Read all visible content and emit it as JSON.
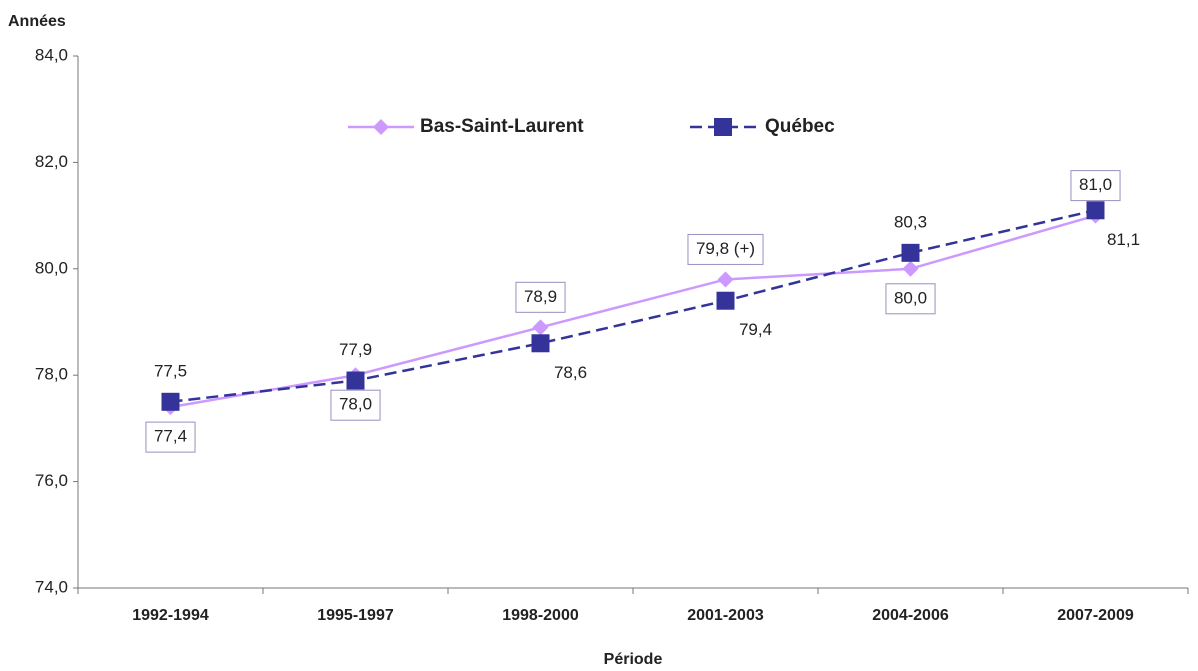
{
  "chart_data": {
    "type": "line",
    "y_label": "Années",
    "x_label": "Période",
    "categories": [
      "1992-1994",
      "1995-1997",
      "1998-2000",
      "2001-2003",
      "2004-2006",
      "2007-2009"
    ],
    "series": [
      {
        "name": "Bas-Saint-Laurent",
        "color": "#cc99ff",
        "marker": "diamond",
        "dash": false,
        "values": [
          77.4,
          78.0,
          78.9,
          79.8,
          80.0,
          81.0
        ],
        "value_labels": [
          "77,4",
          "78,0",
          "78,9",
          "79,8 (+)",
          "80,0",
          "81,0"
        ]
      },
      {
        "name": "Québec",
        "color": "#333399",
        "marker": "square",
        "dash": true,
        "values": [
          77.5,
          77.9,
          78.6,
          79.4,
          80.3,
          81.1
        ],
        "value_labels": [
          "77,5",
          "77,9",
          "78,6",
          "79,4",
          "80,3",
          "81,1"
        ]
      }
    ],
    "ylim": [
      74,
      84
    ],
    "yticks": [
      {
        "value": 74,
        "label": "74,0"
      },
      {
        "value": 76,
        "label": "76,0"
      },
      {
        "value": 78,
        "label": "78,0"
      },
      {
        "value": 80,
        "label": "80,0"
      },
      {
        "value": 82,
        "label": "82,0"
      },
      {
        "value": 84,
        "label": "84,0"
      }
    ],
    "grid": false,
    "legend": "top"
  }
}
